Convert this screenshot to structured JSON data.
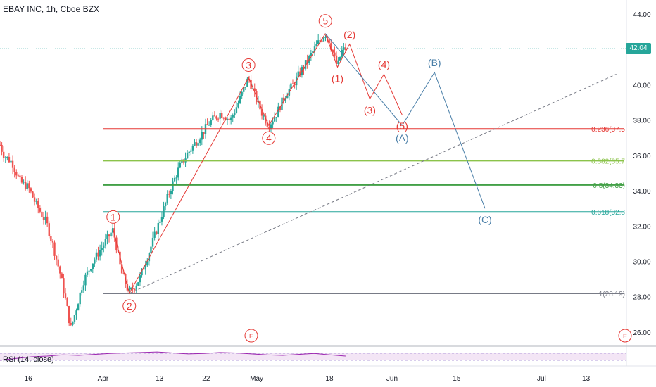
{
  "title": "EBAY INC, 1h, Cboe BZX",
  "current_price_tag": "42.04",
  "rsi_label": "RSI (14, close)",
  "event_markers": [
    "E",
    "E"
  ],
  "colors": {
    "up": "#26a69a",
    "down": "#ef5350",
    "wave": "#e53935",
    "abc": "#4a7fa8",
    "fib_0236": "#e53935",
    "fib_0382": "#8bc34a",
    "fib_05": "#43a047",
    "fib_0618": "#26a69a",
    "fib_1": "#787b86",
    "rsi": "#9c27b0"
  },
  "chart_data": {
    "type": "candlestick",
    "title": "EBAY INC, 1h, Cboe BZX",
    "ylim": [
      25.2,
      44.8
    ],
    "y_ticks": [
      "44.00",
      "42.00",
      "40.00",
      "38.00",
      "36.00",
      "34.00",
      "32.00",
      "30.00",
      "28.00",
      "26.00"
    ],
    "x_ticks": [
      "16",
      "Apr",
      "13",
      "22",
      "May",
      "18",
      "Jun",
      "15",
      "Jul",
      "13"
    ],
    "price_path": [
      {
        "t": 0,
        "v": 36.6
      },
      {
        "t": 0.2,
        "v": 36.0
      },
      {
        "t": 0.6,
        "v": 35.6
      },
      {
        "t": 1.0,
        "v": 34.5
      },
      {
        "t": 1.4,
        "v": 34.2
      },
      {
        "t": 1.8,
        "v": 33.2
      },
      {
        "t": 2.3,
        "v": 32.2
      },
      {
        "t": 2.6,
        "v": 31.0
      },
      {
        "t": 3.0,
        "v": 29.2
      },
      {
        "t": 3.3,
        "v": 27.5
      },
      {
        "t": 3.5,
        "v": 26.2
      },
      {
        "t": 3.7,
        "v": 27.0
      },
      {
        "t": 4.1,
        "v": 28.8
      },
      {
        "t": 4.6,
        "v": 30.0
      },
      {
        "t": 5.1,
        "v": 30.9
      },
      {
        "t": 5.6,
        "v": 31.8
      },
      {
        "t": 6.0,
        "v": 29.4
      },
      {
        "t": 6.4,
        "v": 28.19
      },
      {
        "t": 6.9,
        "v": 29.0
      },
      {
        "t": 7.4,
        "v": 30.6
      },
      {
        "t": 7.9,
        "v": 32.3
      },
      {
        "t": 8.4,
        "v": 34.0
      },
      {
        "t": 8.9,
        "v": 35.4
      },
      {
        "t": 9.4,
        "v": 36.3
      },
      {
        "t": 9.9,
        "v": 37.1
      },
      {
        "t": 10.4,
        "v": 37.9
      },
      {
        "t": 10.9,
        "v": 38.4
      },
      {
        "t": 11.4,
        "v": 38.0
      },
      {
        "t": 11.8,
        "v": 39.0
      },
      {
        "t": 12.3,
        "v": 40.4
      },
      {
        "t": 12.6,
        "v": 39.4
      },
      {
        "t": 13.0,
        "v": 38.3
      },
      {
        "t": 13.3,
        "v": 37.7
      },
      {
        "t": 13.7,
        "v": 38.4
      },
      {
        "t": 14.1,
        "v": 39.4
      },
      {
        "t": 14.5,
        "v": 40.0
      },
      {
        "t": 14.9,
        "v": 40.8
      },
      {
        "t": 15.3,
        "v": 41.5
      },
      {
        "t": 15.7,
        "v": 42.3
      },
      {
        "t": 16.1,
        "v": 42.9
      },
      {
        "t": 16.3,
        "v": 42.5
      },
      {
        "t": 16.5,
        "v": 41.7
      },
      {
        "t": 16.7,
        "v": 41.0
      },
      {
        "t": 16.9,
        "v": 41.9
      },
      {
        "t": 17.1,
        "v": 42.04
      }
    ],
    "current_price": 42.04,
    "trendline": [
      {
        "t": 6.4,
        "v": 28.19
      },
      {
        "t": 30.5,
        "v": 40.6
      }
    ],
    "fibonacci": [
      {
        "level": "0.236",
        "price": 37.5,
        "label": "0.236(37.5"
      },
      {
        "level": "0.382",
        "price": 35.7,
        "label": "0.382(35.7"
      },
      {
        "level": "0.5",
        "price": 34.33,
        "label": "0.5(34.33)"
      },
      {
        "level": "0.618",
        "price": 32.8,
        "label": "0.618(32.8"
      },
      {
        "level": "1",
        "price": 28.19,
        "label": "1(28.19)"
      }
    ],
    "impulse_wave": [
      {
        "label": "1",
        "t": 5.6,
        "v": 31.8
      },
      {
        "label": "2",
        "t": 6.4,
        "v": 28.19
      },
      {
        "label": "3",
        "t": 12.3,
        "v": 40.4
      },
      {
        "label": "4",
        "t": 13.3,
        "v": 37.7
      },
      {
        "label": "5",
        "t": 16.1,
        "v": 42.9
      }
    ],
    "minor_wave_labels": [
      {
        "label": "(1)",
        "t": 16.7,
        "v": 41.0
      },
      {
        "label": "(2)",
        "t": 17.3,
        "v": 42.3
      },
      {
        "label": "(3)",
        "t": 18.3,
        "v": 39.2
      },
      {
        "label": "(4)",
        "t": 19.0,
        "v": 40.6
      },
      {
        "label": "(5)",
        "t": 19.9,
        "v": 38.3
      }
    ],
    "minor_wave_path": [
      {
        "t": 16.1,
        "v": 42.9
      },
      {
        "t": 16.7,
        "v": 41.0
      },
      {
        "t": 17.3,
        "v": 42.3
      },
      {
        "t": 18.3,
        "v": 39.2
      },
      {
        "t": 19.0,
        "v": 40.6
      },
      {
        "t": 19.9,
        "v": 38.3
      }
    ],
    "abc_labels": [
      {
        "label": "(A)",
        "t": 19.9,
        "v": 37.7
      },
      {
        "label": "(B)",
        "t": 21.5,
        "v": 40.7
      },
      {
        "label": "(C)",
        "t": 24.0,
        "v": 33.0
      }
    ],
    "abc_path": [
      {
        "t": 16.1,
        "v": 42.9
      },
      {
        "t": 19.9,
        "v": 37.7
      },
      {
        "t": 21.5,
        "v": 40.7
      },
      {
        "t": 24.0,
        "v": 33.0
      }
    ],
    "rsi": {
      "label": "RSI (14, close)",
      "levels": [
        70,
        30
      ],
      "values": [
        38,
        45,
        52,
        55,
        60,
        58,
        62,
        66,
        68,
        70,
        72,
        68,
        64,
        66,
        70,
        68,
        64,
        60,
        58,
        62,
        66,
        60,
        55
      ]
    }
  }
}
